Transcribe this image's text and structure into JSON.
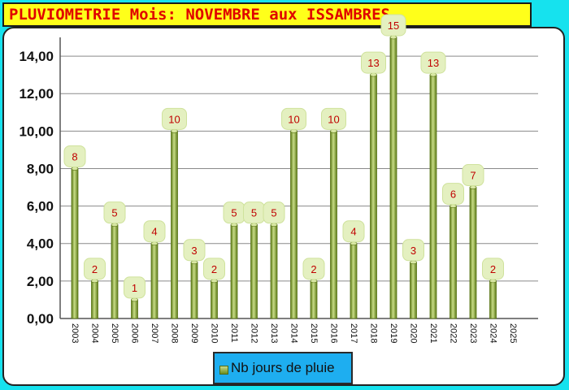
{
  "title": "PLUVIOMETRIE Mois: NOVEMBRE aux ISSAMBRES",
  "colors": {
    "background": "#16e2ee",
    "title_background": "#ffff1a",
    "title_text": "#e00000",
    "bar": "#8aa83a",
    "label_bubble": "#e4f0c0",
    "data_label": "#c00000",
    "legend_background": "#1eaef0"
  },
  "chart_data": {
    "type": "bar",
    "title": "PLUVIOMETRIE Mois: NOVEMBRE aux ISSAMBRES",
    "categories": [
      "2003",
      "2004",
      "2005",
      "2006",
      "2007",
      "2008",
      "2009",
      "2010",
      "2011",
      "2012",
      "2013",
      "2014",
      "2015",
      "2016",
      "2017",
      "2018",
      "2019",
      "2020",
      "2021",
      "2022",
      "2023",
      "2024",
      "2025"
    ],
    "series": [
      {
        "name": "Nb jours de pluie",
        "values": [
          8,
          2,
          5,
          1,
          4,
          10,
          3,
          2,
          5,
          5,
          5,
          10,
          2,
          10,
          4,
          13,
          15,
          3,
          13,
          6,
          7,
          2,
          null
        ]
      }
    ],
    "y_tick_labels": [
      "0,00",
      "2,00",
      "4,00",
      "6,00",
      "8,00",
      "10,00",
      "12,00",
      "14,00"
    ],
    "ylim": [
      0,
      15
    ],
    "grid": "horizontal",
    "legend_position": "bottom"
  }
}
